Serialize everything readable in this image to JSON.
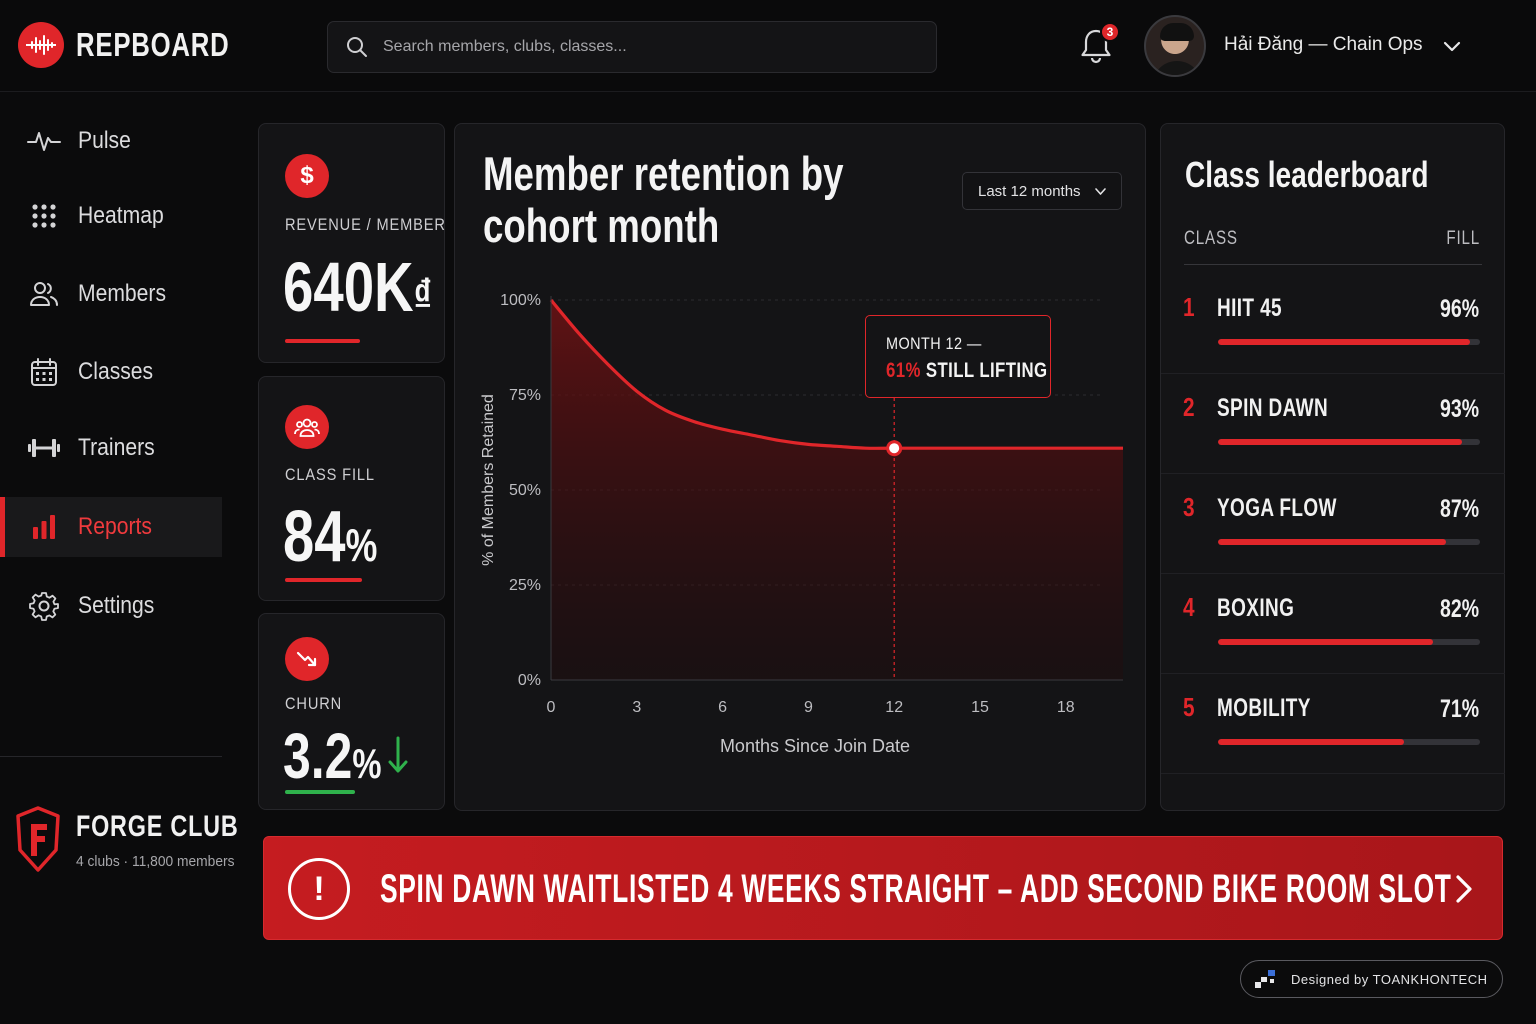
{
  "app": {
    "name": "REPBOARD"
  },
  "search": {
    "placeholder": "Search members, clubs, classes..."
  },
  "header": {
    "notifications_count": "3",
    "user_name": "Hải Đăng — Chain Ops"
  },
  "sidebar": {
    "items": [
      {
        "label": "Pulse",
        "icon": "pulse-icon"
      },
      {
        "label": "Heatmap",
        "icon": "grid-dots-icon"
      },
      {
        "label": "Members",
        "icon": "members-icon"
      },
      {
        "label": "Classes",
        "icon": "calendar-icon"
      },
      {
        "label": "Trainers",
        "icon": "dumbbell-icon"
      },
      {
        "label": "Reports",
        "icon": "bar-chart-icon",
        "active": true
      },
      {
        "label": "Settings",
        "icon": "gear-icon"
      }
    ],
    "club": {
      "name": "FORGE CLUB",
      "subtitle": "4 clubs · 11,800 members"
    }
  },
  "kpis": [
    {
      "label": "REVENUE / MEMBER",
      "value": "640K",
      "unit": "₫",
      "icon": "dollar-icon"
    },
    {
      "label": "CLASS FILL",
      "value": "84",
      "unit": "%",
      "icon": "group-icon"
    },
    {
      "label": "CHURN",
      "value": "3.2",
      "unit": "%",
      "icon": "trend-down-icon",
      "trend": "down"
    }
  ],
  "chart": {
    "title": "Member retention by cohort month",
    "range_label": "Last 12 months",
    "tooltip_line1": "MONTH 12 —",
    "tooltip_pct": "61%",
    "tooltip_text": "STILL LIFTING"
  },
  "chart_data": {
    "type": "area",
    "title": "Member retention by cohort month",
    "xlabel": "Months Since Join Date",
    "ylabel": "% of Members Retained",
    "x_ticks": [
      "0",
      "3",
      "6",
      "9",
      "12",
      "15",
      "18"
    ],
    "y_ticks": [
      "0%",
      "25%",
      "50%",
      "75%",
      "100%"
    ],
    "xlim": [
      0,
      20
    ],
    "ylim": [
      0,
      100
    ],
    "grid": true,
    "series": [
      {
        "x": [
          0,
          1,
          2,
          3,
          4,
          5,
          6,
          7,
          8,
          9,
          10,
          11,
          12,
          13,
          14,
          15,
          16,
          17,
          18,
          19,
          20
        ],
        "values": [
          100,
          91,
          83,
          76,
          71,
          68,
          66,
          64.5,
          63,
          62,
          61.5,
          61,
          61,
          61,
          61,
          61,
          61,
          61,
          61,
          61,
          61
        ]
      }
    ],
    "highlight": {
      "x": 12,
      "y": 61
    },
    "colors": {
      "line": "#e0262a",
      "fill": "#5a1012"
    }
  },
  "leaderboard": {
    "title": "Class leaderboard",
    "col_class": "CLASS",
    "col_fill": "FILL",
    "rows": [
      {
        "rank": "1",
        "name": "HIIT 45",
        "fill": "96%",
        "value": 0.96
      },
      {
        "rank": "2",
        "name": "SPIN DAWN",
        "fill": "93%",
        "value": 0.93
      },
      {
        "rank": "3",
        "name": "YOGA FLOW",
        "fill": "87%",
        "value": 0.87
      },
      {
        "rank": "4",
        "name": "BOXING",
        "fill": "82%",
        "value": 0.82
      },
      {
        "rank": "5",
        "name": "MOBILITY",
        "fill": "71%",
        "value": 0.71
      }
    ]
  },
  "alert": {
    "text": "SPIN DAWN WAITLISTED 4 WEEKS STRAIGHT – ADD SECOND BIKE ROOM SLOT"
  },
  "footer": {
    "credit": "Designed by TOANKHONTECH"
  },
  "colors": {
    "accent": "#e0262a",
    "background": "#0b0b0c",
    "card": "#141416",
    "positive": "#2fb24c"
  }
}
